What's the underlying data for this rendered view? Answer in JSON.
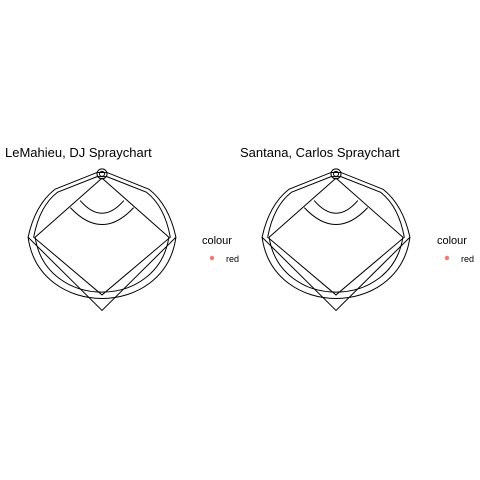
{
  "colors": {
    "point": "#F8766D",
    "line": "#000000",
    "background": "#ffffff"
  },
  "chart_data": [
    {
      "type": "scatter",
      "title": "LeMahieu, DJ  Spraychart",
      "xlabel": "",
      "ylabel": "",
      "xlim": [
        0,
        250
      ],
      "ylim": [
        -250,
        0
      ],
      "grid": false,
      "legend": {
        "title": "colour",
        "entries": [
          "red"
        ],
        "placement": "right"
      },
      "series": [
        {
          "name": "red",
          "x": [],
          "y": []
        }
      ]
    },
    {
      "type": "scatter",
      "title": "Santana, Carlos  Spraychart",
      "xlabel": "",
      "ylabel": "",
      "xlim": [
        0,
        250
      ],
      "ylim": [
        -250,
        0
      ],
      "grid": false,
      "legend": {
        "title": "colour",
        "entries": [
          "red"
        ],
        "placement": "right"
      },
      "series": [
        {
          "name": "red",
          "x": [],
          "y": []
        }
      ]
    }
  ]
}
